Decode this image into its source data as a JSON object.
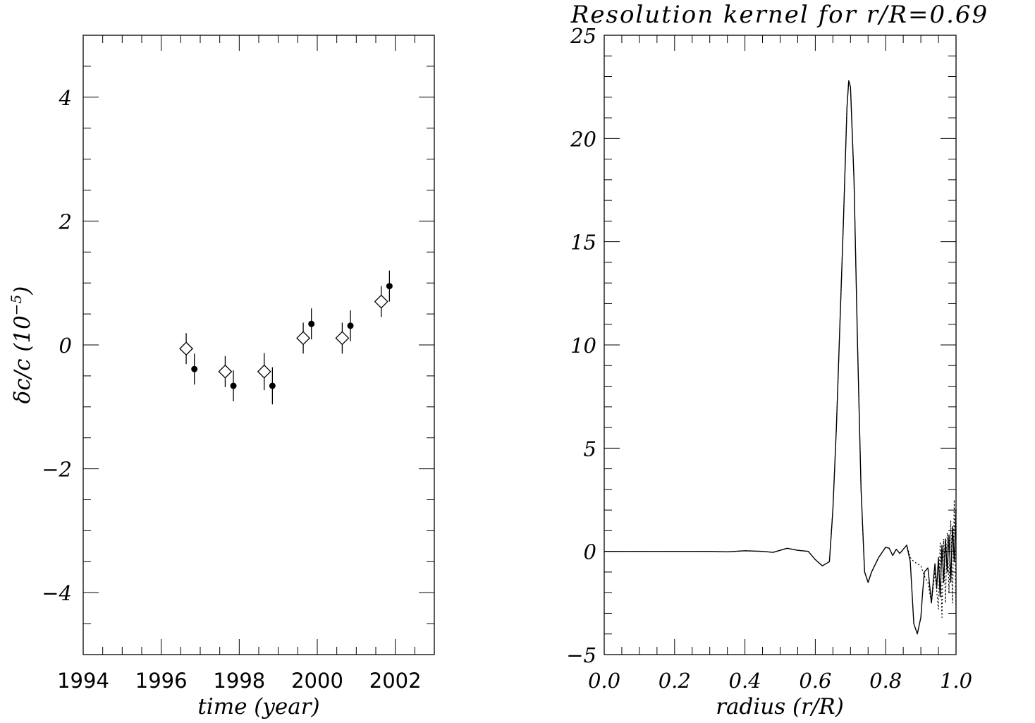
{
  "chart_data": [
    {
      "type": "scatter",
      "title": "",
      "xlabel": "time (year)",
      "ylabel_main": "δc/c (10",
      "ylabel_exp": "−5",
      "ylabel_close": ")",
      "xlim": [
        1994,
        2003
      ],
      "ylim": [
        -5,
        5
      ],
      "x_ticks": [
        1994,
        1996,
        1998,
        2000,
        2002
      ],
      "x_tick_labels": [
        "1994",
        "1996",
        "1998",
        "2000",
        "2002"
      ],
      "y_ticks": [
        -4,
        -2,
        0,
        2,
        4
      ],
      "y_tick_labels": [
        "−4",
        "−2",
        "0",
        "2",
        "4"
      ],
      "series": [
        {
          "marker": "diamond-open",
          "points": [
            {
              "x": 1996.64,
              "y": -0.06,
              "err": 0.25
            },
            {
              "x": 1997.64,
              "y": -0.43,
              "err": 0.25
            },
            {
              "x": 1998.64,
              "y": -0.43,
              "err": 0.3
            },
            {
              "x": 1999.64,
              "y": 0.11,
              "err": 0.25
            },
            {
              "x": 2000.64,
              "y": 0.11,
              "err": 0.25
            },
            {
              "x": 2001.64,
              "y": 0.7,
              "err": 0.25
            }
          ]
        },
        {
          "marker": "circle-filled",
          "points": [
            {
              "x": 1996.85,
              "y": -0.39,
              "err": 0.25
            },
            {
              "x": 1997.85,
              "y": -0.66,
              "err": 0.25
            },
            {
              "x": 1998.85,
              "y": -0.66,
              "err": 0.3
            },
            {
              "x": 1999.85,
              "y": 0.34,
              "err": 0.25
            },
            {
              "x": 2000.85,
              "y": 0.31,
              "err": 0.25
            },
            {
              "x": 2001.85,
              "y": 0.95,
              "err": 0.25
            }
          ]
        }
      ]
    },
    {
      "type": "line",
      "title": "Resolution kernel for r/R=0.69",
      "xlabel": "radius (r/R)",
      "ylabel": "",
      "xlim": [
        0.0,
        1.0
      ],
      "ylim": [
        -5,
        25
      ],
      "x_ticks": [
        0.0,
        0.2,
        0.4,
        0.6,
        0.8,
        1.0
      ],
      "x_tick_labels": [
        "0.0",
        "0.2",
        "0.4",
        "0.6",
        "0.8",
        "1.0"
      ],
      "y_ticks": [
        -5,
        0,
        5,
        10,
        15,
        20,
        25
      ],
      "y_tick_labels": [
        "−5",
        "0",
        "5",
        "10",
        "15",
        "20",
        "25"
      ],
      "series": [
        {
          "style": "solid",
          "x": [
            0.0,
            0.1,
            0.2,
            0.3,
            0.35,
            0.4,
            0.45,
            0.48,
            0.5,
            0.52,
            0.55,
            0.58,
            0.6,
            0.62,
            0.64,
            0.65,
            0.66,
            0.67,
            0.68,
            0.69,
            0.695,
            0.7,
            0.71,
            0.72,
            0.73,
            0.74,
            0.75,
            0.76,
            0.78,
            0.8,
            0.81,
            0.82,
            0.83,
            0.84,
            0.85,
            0.86,
            0.87,
            0.875,
            0.88,
            0.89,
            0.9,
            0.905,
            0.91,
            0.92,
            0.93,
            0.935,
            0.94,
            0.945,
            0.95,
            0.955,
            0.96,
            0.965,
            0.97,
            0.975,
            0.98,
            0.985,
            0.99,
            0.995,
            1.0
          ],
          "y": [
            0.0,
            0.0,
            0.0,
            0.0,
            -0.02,
            0.03,
            0.0,
            -0.05,
            0.05,
            0.15,
            0.05,
            0.0,
            -0.4,
            -0.7,
            -0.5,
            2.0,
            6.0,
            11.0,
            16.0,
            21.5,
            22.8,
            22.5,
            18.0,
            10.0,
            3.0,
            -1.0,
            -1.5,
            -1.0,
            -0.3,
            0.2,
            0.15,
            -0.2,
            0.1,
            -0.1,
            0.1,
            0.3,
            -0.5,
            -2.0,
            -3.5,
            -4.0,
            -3.2,
            -2.0,
            -1.0,
            -0.8,
            -2.5,
            -1.5,
            -0.6,
            -1.8,
            -0.3,
            -2.2,
            0.3,
            -1.5,
            0.6,
            -1.0,
            0.8,
            -1.5,
            1.2,
            -0.5,
            2.0
          ]
        },
        {
          "style": "dotted",
          "x": [
            0.0,
            0.1,
            0.2,
            0.3,
            0.35,
            0.4,
            0.45,
            0.48,
            0.5,
            0.52,
            0.55,
            0.58,
            0.6,
            0.62,
            0.64,
            0.65,
            0.66,
            0.67,
            0.68,
            0.69,
            0.695,
            0.7,
            0.71,
            0.72,
            0.73,
            0.74,
            0.75,
            0.76,
            0.78,
            0.8,
            0.81,
            0.82,
            0.83,
            0.84,
            0.85,
            0.86,
            0.87,
            0.88,
            0.89,
            0.9,
            0.91,
            0.92,
            0.93,
            0.94,
            0.95,
            0.955,
            0.96,
            0.965,
            0.97,
            0.975,
            0.98,
            0.985,
            0.99,
            0.995,
            1.0
          ],
          "y": [
            0.0,
            0.0,
            0.0,
            0.0,
            -0.02,
            0.03,
            0.0,
            -0.05,
            0.05,
            0.15,
            0.05,
            0.0,
            -0.4,
            -0.7,
            -0.5,
            2.0,
            6.0,
            11.0,
            16.0,
            21.5,
            22.8,
            22.5,
            18.0,
            10.0,
            3.0,
            -1.0,
            -1.5,
            -1.0,
            -0.3,
            0.2,
            0.15,
            -0.2,
            0.1,
            -0.1,
            0.1,
            0.3,
            -0.3,
            -0.5,
            -0.6,
            -0.7,
            -1.2,
            -1.5,
            -2.5,
            -1.0,
            -2.8,
            0.4,
            -3.2,
            0.6,
            -2.5,
            0.9,
            -2.0,
            1.5,
            -2.5,
            2.5,
            -3.0
          ]
        }
      ]
    }
  ]
}
